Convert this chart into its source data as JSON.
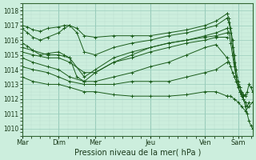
{
  "bg_color": "#cceedd",
  "grid_major_color": "#99ccbb",
  "grid_minor_color": "#bbddd0",
  "line_color": "#1a5c1a",
  "xlabel": "Pression niveau de la mer( hPa )",
  "xtick_labels": [
    "Mar",
    "Dim",
    "Mer",
    "Jeu",
    "Ven",
    "Sam"
  ],
  "xtick_positions": [
    0.0,
    1.0,
    2.0,
    3.5,
    5.0,
    5.9
  ],
  "ylim": [
    1009.5,
    1018.5
  ],
  "xlim": [
    0.0,
    6.3
  ],
  "yticks": [
    1010,
    1011,
    1012,
    1013,
    1014,
    1015,
    1016,
    1017,
    1018
  ],
  "ensemble_lines": [
    {
      "x": [
        0.0,
        0.15,
        0.3,
        0.5,
        0.7,
        1.0,
        1.15,
        1.3,
        1.5,
        1.7,
        2.0,
        2.5,
        3.0,
        3.5,
        4.0,
        4.5,
        5.0,
        5.3,
        5.6
      ],
      "y": [
        1017.0,
        1016.9,
        1016.7,
        1016.6,
        1016.8,
        1016.9,
        1017.0,
        1017.0,
        1016.8,
        1016.3,
        1016.2,
        1016.3,
        1016.3,
        1016.3,
        1016.5,
        1016.7,
        1017.0,
        1017.3,
        1017.8
      ]
    },
    {
      "x": [
        0.0,
        0.15,
        0.3,
        0.5,
        0.7,
        1.0,
        1.15,
        1.3,
        1.5,
        1.7,
        2.0,
        2.5,
        3.0,
        3.5,
        4.0,
        4.5,
        5.0,
        5.3,
        5.6
      ],
      "y": [
        1016.8,
        1016.5,
        1016.2,
        1016.0,
        1016.2,
        1016.5,
        1016.8,
        1017.0,
        1016.5,
        1015.2,
        1015.0,
        1015.5,
        1015.8,
        1016.0,
        1016.3,
        1016.5,
        1016.8,
        1017.0,
        1017.5
      ]
    },
    {
      "x": [
        0.0,
        0.15,
        0.3,
        0.5,
        0.7,
        1.0,
        1.15,
        1.3,
        1.5,
        1.7,
        2.0,
        2.5,
        3.0,
        3.5,
        4.0,
        4.5,
        5.0,
        5.3,
        5.6
      ],
      "y": [
        1015.8,
        1015.6,
        1015.3,
        1015.0,
        1015.1,
        1015.2,
        1015.0,
        1014.8,
        1013.5,
        1013.2,
        1013.8,
        1014.5,
        1015.0,
        1015.5,
        1015.8,
        1016.0,
        1016.3,
        1016.5,
        1016.8
      ]
    },
    {
      "x": [
        0.0,
        0.3,
        0.7,
        1.0,
        1.3,
        1.7,
        2.0,
        2.5,
        3.0,
        3.5,
        4.0,
        4.5,
        5.0,
        5.3,
        5.6
      ],
      "y": [
        1015.5,
        1015.3,
        1015.0,
        1015.0,
        1014.8,
        1013.5,
        1014.0,
        1014.8,
        1015.2,
        1015.5,
        1015.8,
        1016.0,
        1016.2,
        1016.3,
        1016.5
      ]
    },
    {
      "x": [
        0.0,
        0.3,
        0.7,
        1.0,
        1.3,
        1.7,
        2.0,
        2.5,
        3.0,
        3.5,
        4.0,
        4.5,
        5.0,
        5.3,
        5.6
      ],
      "y": [
        1015.2,
        1015.0,
        1014.8,
        1014.8,
        1014.5,
        1013.8,
        1013.8,
        1014.5,
        1014.8,
        1015.2,
        1015.5,
        1015.8,
        1016.0,
        1016.2,
        1016.2
      ]
    },
    {
      "x": [
        0.0,
        0.3,
        0.7,
        1.0,
        1.3,
        1.7,
        2.0,
        2.5,
        3.0,
        3.5,
        4.0,
        4.5,
        5.0,
        5.3,
        5.6
      ],
      "y": [
        1014.8,
        1014.5,
        1014.2,
        1014.0,
        1013.5,
        1013.2,
        1013.2,
        1013.5,
        1013.8,
        1014.2,
        1014.5,
        1015.0,
        1015.5,
        1015.7,
        1014.8
      ]
    },
    {
      "x": [
        0.0,
        0.3,
        0.7,
        1.0,
        1.3,
        1.7,
        2.0,
        2.5,
        3.0,
        3.5,
        4.0,
        4.5,
        5.0,
        5.3,
        5.6
      ],
      "y": [
        1014.2,
        1014.0,
        1013.8,
        1013.5,
        1013.2,
        1013.0,
        1013.0,
        1013.0,
        1013.2,
        1013.2,
        1013.2,
        1013.5,
        1013.8,
        1014.0,
        1014.5
      ]
    },
    {
      "x": [
        0.0,
        0.3,
        0.7,
        1.0,
        1.3,
        1.7,
        2.0,
        2.5,
        3.0,
        3.5,
        4.0,
        4.5,
        5.0,
        5.3,
        5.6
      ],
      "y": [
        1013.5,
        1013.2,
        1013.0,
        1013.0,
        1012.8,
        1012.5,
        1012.5,
        1012.3,
        1012.2,
        1012.2,
        1012.2,
        1012.3,
        1012.5,
        1012.5,
        1012.2
      ]
    },
    {
      "x": [
        5.6,
        5.65,
        5.7,
        5.75,
        5.8,
        5.85,
        5.9,
        5.95,
        6.0,
        6.05,
        6.1,
        6.15,
        6.2,
        6.25,
        6.3
      ],
      "y": [
        1017.8,
        1017.5,
        1016.8,
        1016.0,
        1015.0,
        1014.0,
        1013.2,
        1012.8,
        1012.3,
        1012.0,
        1011.5,
        1011.0,
        1010.5,
        1010.2,
        1010.0
      ]
    },
    {
      "x": [
        5.6,
        5.65,
        5.7,
        5.75,
        5.8,
        5.85,
        5.9,
        5.95,
        6.0,
        6.05,
        6.1,
        6.15,
        6.2
      ],
      "y": [
        1017.5,
        1017.2,
        1016.5,
        1015.5,
        1014.5,
        1013.5,
        1012.8,
        1012.5,
        1012.2,
        1012.0,
        1011.8,
        1011.5,
        1011.8
      ]
    },
    {
      "x": [
        5.6,
        5.65,
        5.7,
        5.75,
        5.8,
        5.85,
        5.9,
        5.95,
        6.0,
        6.05,
        6.1,
        6.15,
        6.2,
        6.25,
        6.3
      ],
      "y": [
        1016.8,
        1016.5,
        1015.8,
        1015.0,
        1014.2,
        1013.5,
        1012.8,
        1012.5,
        1012.3,
        1012.2,
        1012.3,
        1012.5,
        1013.0,
        1012.8,
        1012.5
      ]
    },
    {
      "x": [
        5.6,
        5.65,
        5.7,
        5.75,
        5.8,
        5.85,
        5.9,
        5.95,
        6.0,
        6.05,
        6.1
      ],
      "y": [
        1014.8,
        1014.5,
        1014.2,
        1013.8,
        1013.5,
        1013.2,
        1013.0,
        1012.8,
        1012.5,
        1012.3,
        1012.2
      ]
    },
    {
      "x": [
        5.6,
        5.7,
        5.8,
        5.9,
        6.0,
        6.1,
        6.2,
        6.3
      ],
      "y": [
        1012.2,
        1012.2,
        1012.0,
        1011.8,
        1011.5,
        1011.2,
        1011.5,
        1011.8
      ]
    }
  ],
  "vline_positions": [
    0.0,
    1.0,
    2.0,
    3.5,
    5.0,
    5.9
  ]
}
